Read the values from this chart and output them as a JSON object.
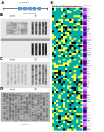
{
  "bg_color": "#ffffff",
  "tau_color": "#5b9bd5",
  "panel_labels": [
    "A",
    "B",
    "C",
    "D",
    "E"
  ],
  "n_heatmap_rows": 65,
  "n_heatmap_cols": 14,
  "heatmap_seed": 7,
  "wb_seed": 99,
  "col_group1_color": "#4488cc",
  "col_group2_color": "#cc4444",
  "purple_top": "#cc88ff",
  "purple_bot": "#440088",
  "gene_names": [
    "SNCA",
    "LRRK2",
    "PINK1",
    "PARK2",
    "PARK7",
    "ATP13A2",
    "GBA",
    "UCHL1",
    "SNCAIP",
    "MAPT",
    "TUBB2A",
    "MAP2",
    "DCX",
    "DPYSL3",
    "NCAM1",
    "NRXN1",
    "SHANK3",
    "HOMER1",
    "SYN1",
    "SNAP25",
    "DLG4",
    "GRIN2B",
    "GABRA1",
    "SLC17A5",
    "SLC1A2",
    "ALDH1A1",
    "VIM",
    "NESTIN",
    "SOX2",
    "PAX6",
    "NEUROD1",
    "ASCL1",
    "TBR1",
    "CTIP2",
    "SATB2",
    "CUX1",
    "RORB",
    "NR4A2",
    "LMX1A",
    "FOXA2",
    "OTX2",
    "EN1",
    "PITX3",
    "TH",
    "DAT",
    "VMAT2",
    "GAD1",
    "GAD2",
    "CALB1",
    "CALB2",
    "PV",
    "SST",
    "NPY",
    "VIP",
    "CR",
    "CHAT",
    "SLC18A3",
    "ISL1",
    "NKX2-1",
    "FOXP1",
    "FOXP2",
    "CNTNAP2",
    "SHANK2",
    "NRXN3",
    "NLGN3"
  ]
}
